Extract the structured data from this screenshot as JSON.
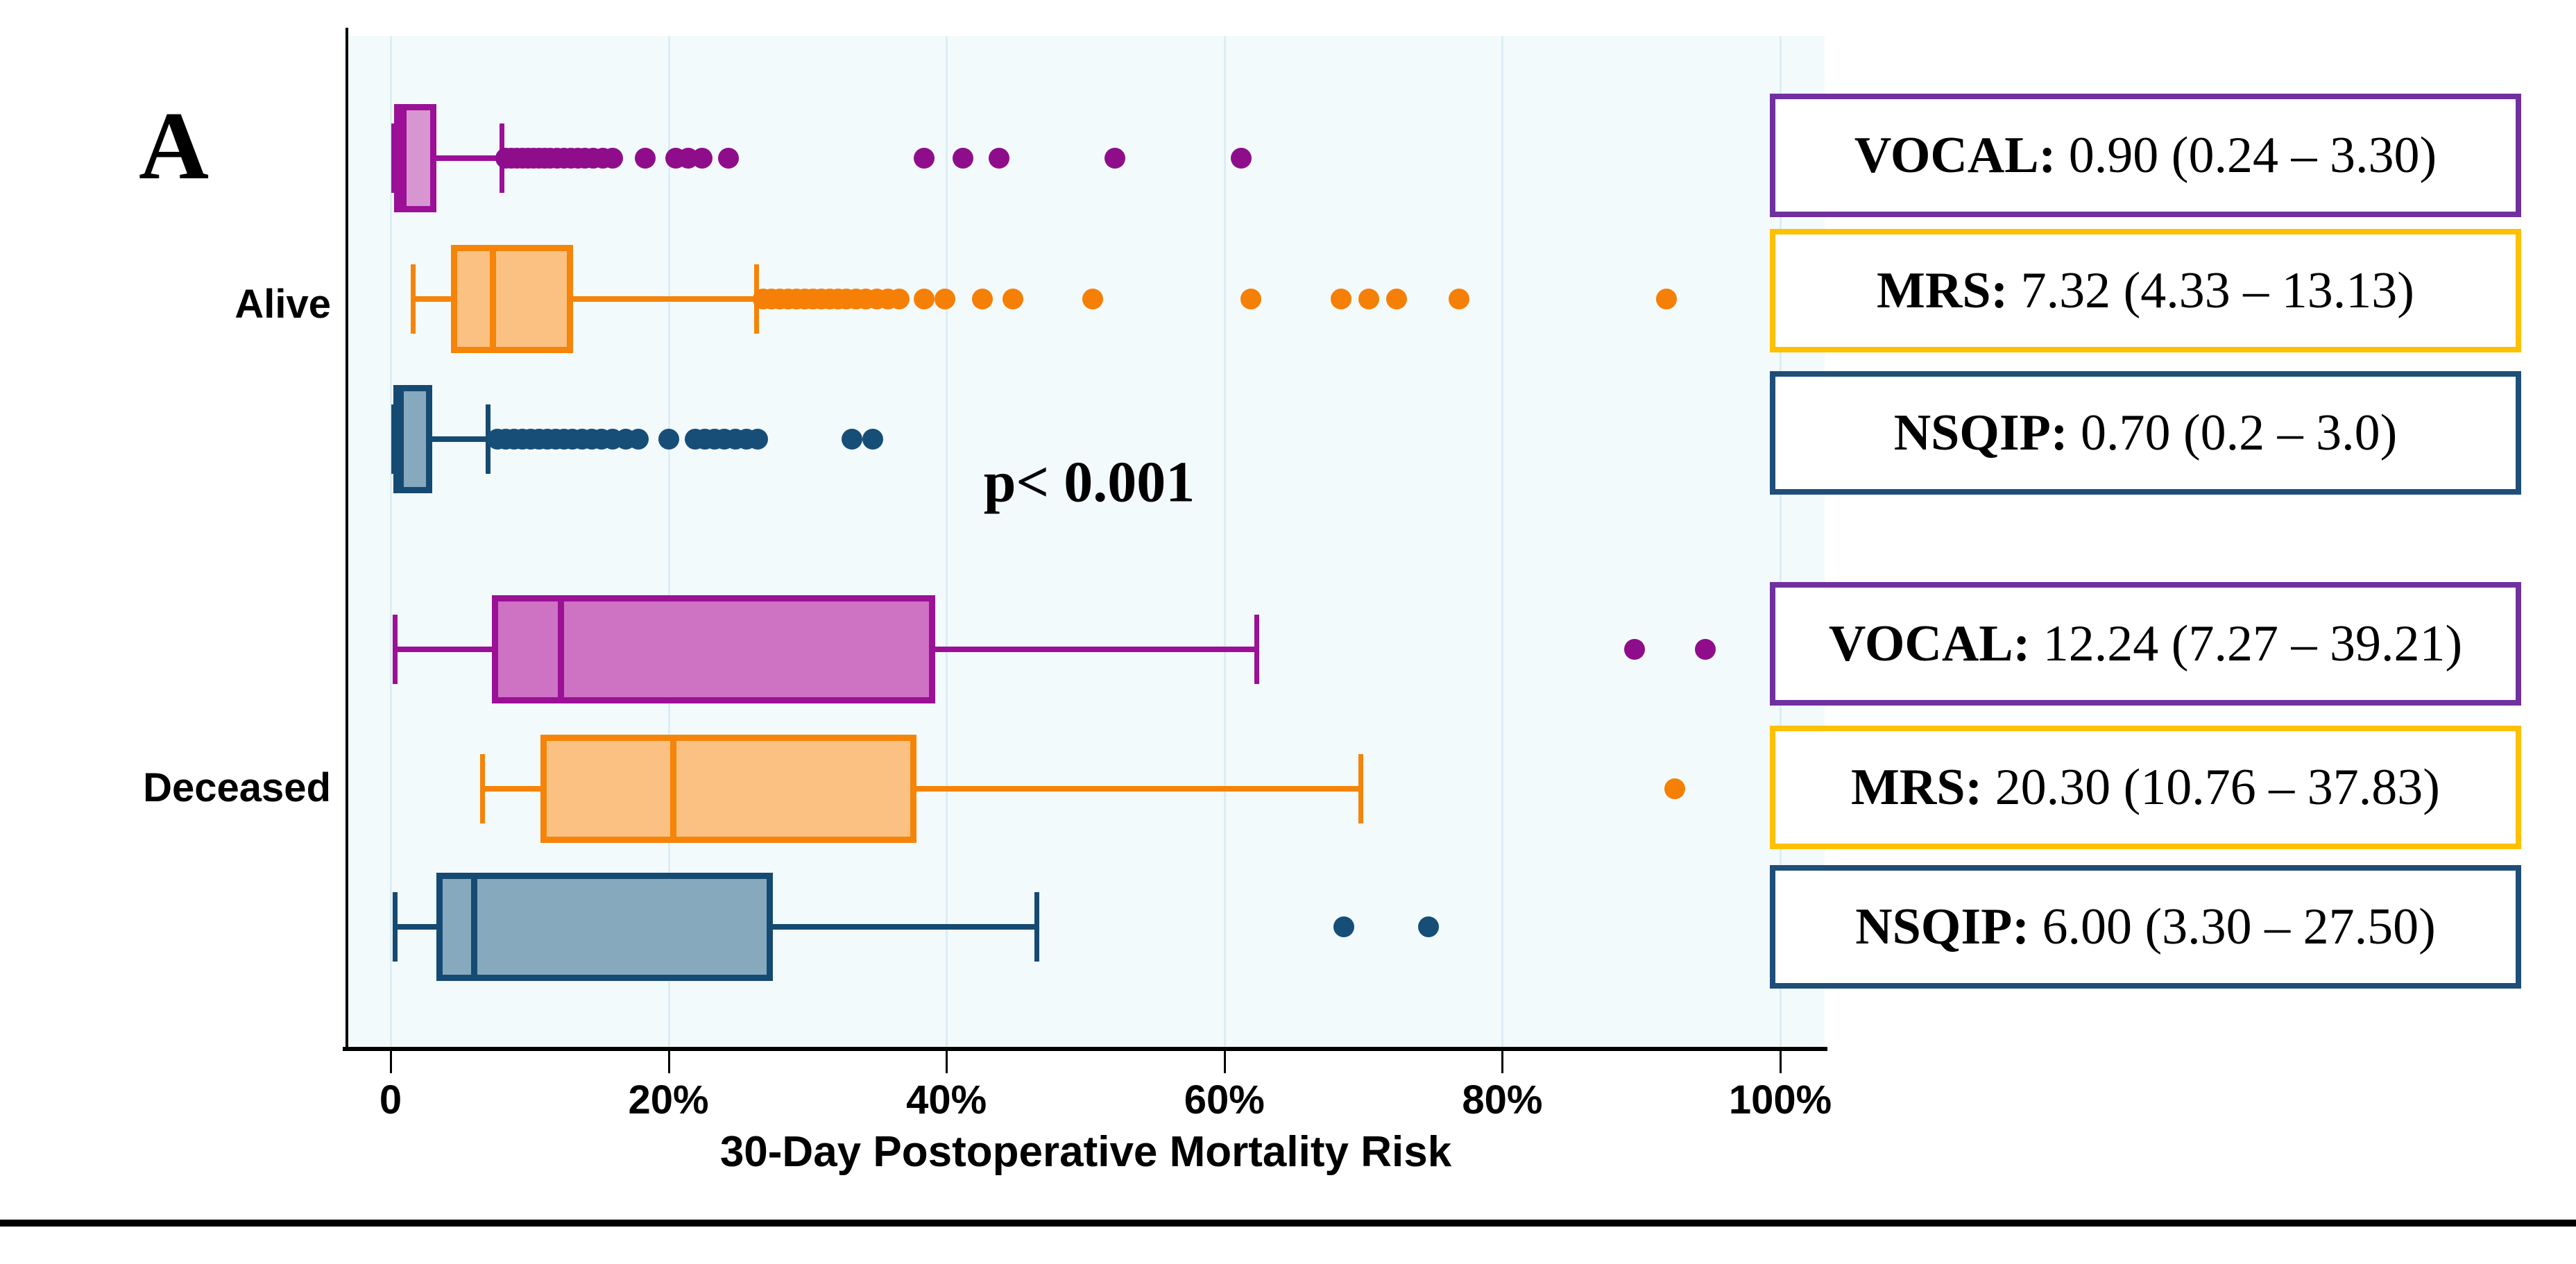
{
  "panel_label": "A",
  "groups": [
    "Alive",
    "Deceased"
  ],
  "annotation": "p< 0.001",
  "axis": {
    "title": "30-Day Postoperative Mortality Risk",
    "ticks": [
      "0",
      "20%",
      "40%",
      "60%",
      "80%",
      "100%"
    ],
    "tick_values": [
      0,
      20,
      40,
      60,
      80,
      100
    ]
  },
  "colors": {
    "plot_background": "#f3fafc",
    "gridline": "#dcedf4",
    "axis": "#000000",
    "vocal_border": "#9B1096",
    "vocal_fill_alive": "#D796CF",
    "vocal_fill_deceased": "#CE72C4",
    "vocal_dot": "#8F0D8A",
    "mrs_border": "#F58408",
    "mrs_fill": "#FBC183",
    "mrs_dot": "#F67F06",
    "nsqip_border": "#154A72",
    "nsqip_fill": "#87A9BD",
    "nsqip_dot": "#174E78",
    "legend_purple": "#7030A0",
    "legend_gold": "#FFC000",
    "legend_blue": "#1F4E79"
  },
  "chart_data": {
    "type": "boxplot",
    "orientation": "horizontal",
    "xlabel": "30-Day Postoperative Mortality Risk",
    "xlim": [
      0,
      100
    ],
    "x_unit": "percent",
    "grid": "vertical",
    "group_labels": [
      "Alive",
      "Deceased"
    ],
    "annotation": "p< 0.001",
    "series": [
      {
        "group": "Alive",
        "name": "VOCAL",
        "legend_label": "VOCAL:",
        "legend_value": "0.90 (0.24 – 3.30)",
        "legend_border": "#7030A0",
        "fill": "#D796CF",
        "border": "#9B1096",
        "dot": "#8F0D8A",
        "stats": {
          "whisker_low": 0.2,
          "q1": 0.24,
          "median": 0.9,
          "q3": 3.3,
          "whisker_high": 8.0
        },
        "outliers": [
          8.3,
          8.7,
          9.1,
          9.5,
          9.9,
          10.3,
          10.7,
          11.1,
          11.5,
          12.0,
          12.5,
          13.0,
          13.5,
          14.0,
          14.6,
          15.3,
          16.0,
          18.3,
          20.5,
          21.4,
          22.4,
          24.3,
          38.4,
          41.2,
          43.8,
          52.1,
          61.2
        ]
      },
      {
        "group": "Alive",
        "name": "MRS",
        "legend_label": "MRS:",
        "legend_value": "7.32 (4.33 – 13.13)",
        "legend_border": "#FFC000",
        "fill": "#FBC183",
        "border": "#F58408",
        "dot": "#F67F06",
        "stats": {
          "whisker_low": 1.6,
          "q1": 4.33,
          "median": 7.32,
          "q3": 13.13,
          "whisker_high": 26.3
        },
        "outliers": [
          26.8,
          27.4,
          28.0,
          28.6,
          29.2,
          29.8,
          30.4,
          31.0,
          31.6,
          32.2,
          32.8,
          33.5,
          34.2,
          35.0,
          35.8,
          36.6,
          38.4,
          39.9,
          42.6,
          44.8,
          50.5,
          61.9,
          68.4,
          70.4,
          72.4,
          76.9,
          91.8
        ]
      },
      {
        "group": "Alive",
        "name": "NSQIP",
        "legend_label": "NSQIP:",
        "legend_value": "0.70 (0.2 – 3.0)",
        "legend_border": "#1F4E79",
        "fill": "#87A9BD",
        "border": "#154A72",
        "dot": "#174E78",
        "stats": {
          "whisker_low": 0.2,
          "q1": 0.2,
          "median": 0.7,
          "q3": 3.0,
          "whisker_high": 7.0
        },
        "outliers": [
          7.7,
          8.3,
          8.9,
          9.5,
          10.1,
          10.7,
          11.3,
          11.9,
          12.5,
          13.1,
          13.8,
          14.5,
          15.2,
          16.0,
          16.9,
          17.8,
          20.0,
          21.9,
          22.6,
          23.3,
          24.0,
          24.8,
          25.6,
          26.4,
          33.2,
          34.7
        ]
      },
      {
        "group": "Deceased",
        "name": "VOCAL",
        "legend_label": "VOCAL:",
        "legend_value": "12.24 (7.27 – 39.21)",
        "legend_border": "#7030A0",
        "fill": "#CE72C4",
        "border": "#9B1096",
        "dot": "#8F0D8A",
        "stats": {
          "whisker_low": 0.3,
          "q1": 7.27,
          "median": 12.24,
          "q3": 39.21,
          "whisker_high": 62.3
        },
        "outliers": [
          89.5,
          94.6
        ]
      },
      {
        "group": "Deceased",
        "name": "MRS",
        "legend_label": "MRS:",
        "legend_value": "20.30 (10.76 – 37.83)",
        "legend_border": "#FFC000",
        "fill": "#FBC183",
        "border": "#F58408",
        "dot": "#F67F06",
        "stats": {
          "whisker_low": 6.6,
          "q1": 10.76,
          "median": 20.3,
          "q3": 37.83,
          "whisker_high": 69.8
        },
        "outliers": [
          92.4
        ]
      },
      {
        "group": "Deceased",
        "name": "NSQIP",
        "legend_label": "NSQIP:",
        "legend_value": "6.00 (3.30 – 27.50)",
        "legend_border": "#1F4E79",
        "fill": "#87A9BD",
        "border": "#154A72",
        "dot": "#174E78",
        "stats": {
          "whisker_low": 0.3,
          "q1": 3.3,
          "median": 6.0,
          "q3": 27.5,
          "whisker_high": 46.5
        },
        "outliers": [
          68.6,
          74.7
        ]
      }
    ]
  }
}
